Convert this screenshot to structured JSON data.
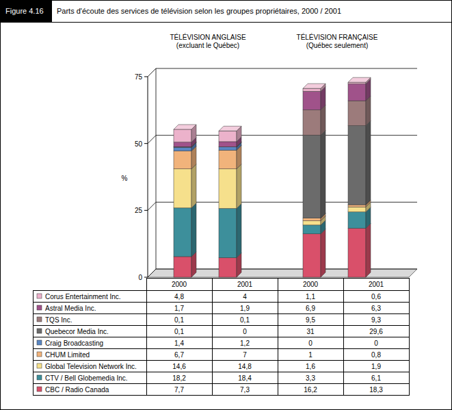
{
  "chart_data": {
    "type": "bar",
    "figure_label": "Figure 4.16",
    "title": "Parts d'écoute des services de télévision selon les groupes propriétaires, 2000 / 2001",
    "y_label": "%",
    "groups": [
      {
        "label": "TÉLÉVISION ANGLAISE",
        "sublabel": "(excluant le Québec)"
      },
      {
        "label": "TÉLÉVISION FRANÇAISE",
        "sublabel": "(Québec seulement)"
      }
    ],
    "categories": [
      "2000",
      "2001",
      "2000",
      "2001"
    ],
    "stacked": true,
    "grid": true,
    "ylim": [
      0,
      75
    ],
    "yticks": [
      0,
      25,
      50,
      75
    ],
    "series": [
      {
        "name": "CBC / Radio Canada",
        "color": "#d9506a",
        "values": [
          7.7,
          7.3,
          16.2,
          18.3
        ],
        "value_labels": [
          "7,7",
          "7,3",
          "16,2",
          "18,3"
        ]
      },
      {
        "name": "CTV / Bell Globemedia Inc.",
        "color": "#3d8f9b",
        "values": [
          18.2,
          18.4,
          3.3,
          6.1
        ],
        "value_labels": [
          "18,2",
          "18,4",
          "3,3",
          "6,1"
        ]
      },
      {
        "name": "Global Television Network Inc.",
        "color": "#f6e08c",
        "values": [
          14.6,
          14.8,
          1.6,
          1.9
        ],
        "value_labels": [
          "14,6",
          "14,8",
          "1,6",
          "1,9"
        ]
      },
      {
        "name": "CHUM Limited",
        "color": "#f1b37b",
        "values": [
          6.7,
          7,
          1,
          0.8
        ],
        "value_labels": [
          "6,7",
          "7",
          "1",
          "0,8"
        ]
      },
      {
        "name": "Craig Broadcasting",
        "color": "#5a86c2",
        "values": [
          1.4,
          1.2,
          0,
          0
        ],
        "value_labels": [
          "1,4",
          "1,2",
          "0",
          "0"
        ]
      },
      {
        "name": "Quebecor Media Inc.",
        "color": "#6b6b6b",
        "values": [
          0.1,
          0,
          31,
          29.6
        ],
        "value_labels": [
          "0,1",
          "0",
          "31",
          "29,6"
        ]
      },
      {
        "name": "TQS Inc.",
        "color": "#9c7b7b",
        "values": [
          0.1,
          0.1,
          9.5,
          9.3
        ],
        "value_labels": [
          "0,1",
          "0,1",
          "9,5",
          "9,3"
        ]
      },
      {
        "name": "Astral Media Inc.",
        "color": "#a0528a",
        "values": [
          1.7,
          1.9,
          6.9,
          6.3
        ],
        "value_labels": [
          "1,7",
          "1,9",
          "6,9",
          "6,3"
        ]
      },
      {
        "name": "Corus Entertainment Inc.",
        "color": "#ecb2cb",
        "values": [
          4.8,
          4,
          1.1,
          0.6
        ],
        "value_labels": [
          "4,8",
          "4",
          "1,1",
          "0,6"
        ]
      }
    ]
  }
}
